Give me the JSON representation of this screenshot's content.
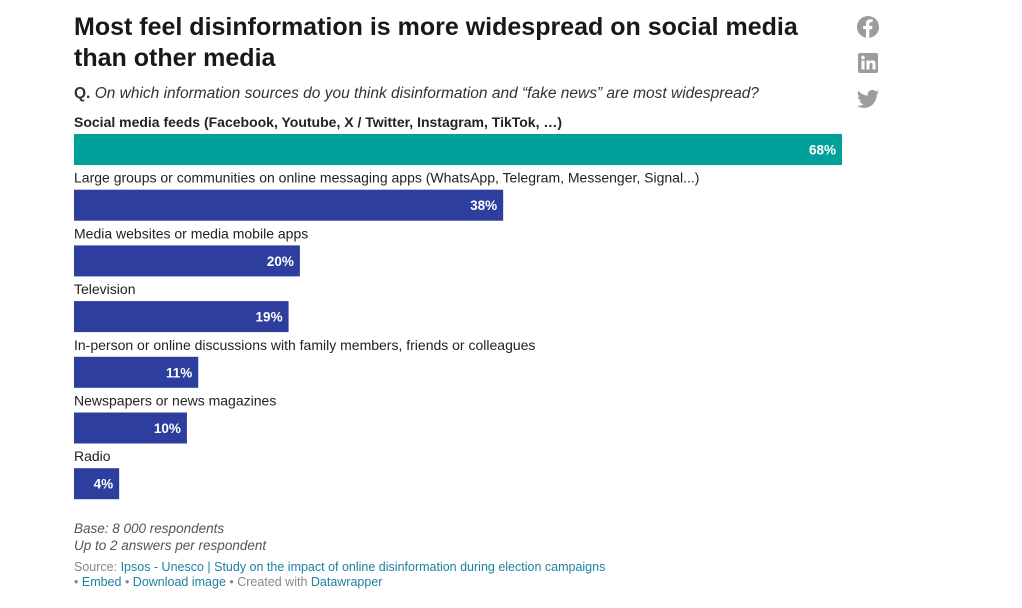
{
  "header": {
    "title": "Most feel disinformation is more widespread on social media than other media",
    "question_prefix": "Q.",
    "question": "On which information sources do you think disinformation and “fake news” are most widespread?"
  },
  "share_icons": [
    "facebook-icon",
    "linkedin-icon",
    "twitter-icon"
  ],
  "colors": {
    "highlight": "#00a19a",
    "bar": "#2e3e9e",
    "icon": "#9c9c9c",
    "link": "#1d81a2"
  },
  "chart_data": {
    "type": "bar",
    "orientation": "horizontal",
    "categories": [
      "Social media feeds (Facebook, Youtube, X / Twitter, Instagram, TikTok, …)",
      "Large groups or communities on online messaging apps (WhatsApp, Telegram, Messenger, Signal...)",
      "Media websites or media mobile apps",
      "Television",
      "In-person or online discussions with family members, friends or colleagues",
      "Newspapers or news magazines",
      "Radio"
    ],
    "values": [
      68,
      38,
      20,
      19,
      11,
      10,
      4
    ],
    "value_labels": [
      "68%",
      "38%",
      "20%",
      "19%",
      "11%",
      "10%",
      "4%"
    ],
    "highlighted_index": 0,
    "xlim": [
      0,
      68
    ],
    "unit": "%"
  },
  "notes": {
    "line1": "Base: 8 000 respondents",
    "line2": "Up to 2 answers per respondent"
  },
  "footer": {
    "source_prefix": "Source: ",
    "source_link": "Ipsos - Unesco | Study on the impact of online disinformation during election campaigns",
    "bullet1": " • ",
    "embed": "Embed",
    "bullet2": " • ",
    "download": "Download image",
    "created_with": " • Created with ",
    "datawrapper": "Datawrapper"
  }
}
